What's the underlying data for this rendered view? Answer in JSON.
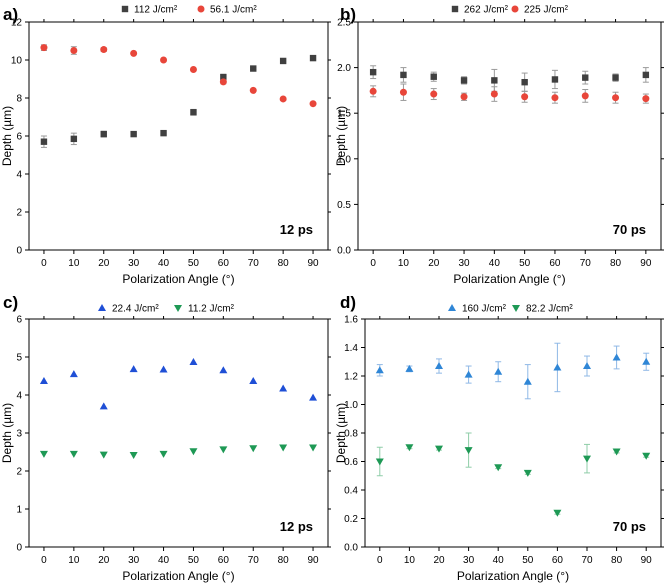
{
  "chart_data": [
    {
      "type": "scatter",
      "panel_label": "a)",
      "annotation": "12 ps",
      "xlabel": "Polarization Angle (°)",
      "ylabel": "Depth (µm)",
      "xlim": [
        -5,
        95
      ],
      "ylim": [
        0,
        12
      ],
      "xticks": [
        0,
        10,
        20,
        30,
        40,
        50,
        60,
        70,
        80,
        90
      ],
      "yticks": [
        0,
        2,
        4,
        6,
        8,
        10,
        12
      ],
      "yticklabels": [
        "0",
        "2",
        "4",
        "6",
        "8",
        "10",
        "12"
      ],
      "legend_position": "top",
      "series": [
        {
          "name": "112 J/cm²",
          "marker": "square",
          "color": "#404040",
          "x": [
            0,
            10,
            20,
            30,
            40,
            50,
            60,
            70,
            80,
            90
          ],
          "y": [
            5.7,
            5.85,
            6.1,
            6.1,
            6.15,
            7.25,
            9.1,
            9.55,
            9.95,
            10.1
          ],
          "err": [
            0.3,
            0.3,
            0.15,
            0.05,
            0.05,
            0.15,
            0.15,
            0.05,
            0.05,
            0.05
          ]
        },
        {
          "name": "56.1 J/cm²",
          "marker": "circle",
          "color": "#e8463a",
          "x": [
            0,
            10,
            20,
            30,
            40,
            50,
            60,
            70,
            80,
            90
          ],
          "y": [
            10.65,
            10.5,
            10.55,
            10.35,
            10.0,
            9.5,
            8.85,
            8.4,
            7.95,
            7.7
          ],
          "err": [
            0.15,
            0.2,
            0.1,
            0.05,
            0.05,
            0.05,
            0.1,
            0.05,
            0.05,
            0.05
          ]
        }
      ]
    },
    {
      "type": "scatter",
      "panel_label": "b)",
      "annotation": "70 ps",
      "xlabel": "Polarization Angle (°)",
      "ylabel": "Depth (µm)",
      "xlim": [
        -5,
        95
      ],
      "ylim": [
        0,
        2.5
      ],
      "xticks": [
        0,
        10,
        20,
        30,
        40,
        50,
        60,
        70,
        80,
        90
      ],
      "yticks": [
        0,
        0.5,
        1.0,
        1.5,
        2.0,
        2.5
      ],
      "yticklabels": [
        "0.0",
        "0.5",
        "1.0",
        "1.5",
        "2.0",
        "2.5"
      ],
      "legend_position": "top",
      "series": [
        {
          "name": "262 J/cm²",
          "marker": "square",
          "color": "#404040",
          "x": [
            0,
            10,
            20,
            30,
            40,
            50,
            60,
            70,
            80,
            90
          ],
          "y": [
            1.95,
            1.92,
            1.9,
            1.86,
            1.86,
            1.84,
            1.87,
            1.89,
            1.89,
            1.92
          ],
          "err": [
            0.07,
            0.08,
            0.05,
            0.04,
            0.12,
            0.1,
            0.1,
            0.07,
            0.04,
            0.08
          ]
        },
        {
          "name": "225 J/cm²",
          "marker": "circle",
          "color": "#e8463a",
          "x": [
            0,
            10,
            20,
            30,
            40,
            50,
            60,
            70,
            80,
            90
          ],
          "y": [
            1.74,
            1.73,
            1.71,
            1.68,
            1.71,
            1.68,
            1.67,
            1.69,
            1.67,
            1.66
          ],
          "err": [
            0.06,
            0.09,
            0.06,
            0.04,
            0.08,
            0.06,
            0.06,
            0.07,
            0.06,
            0.05
          ]
        }
      ]
    },
    {
      "type": "scatter",
      "panel_label": "c)",
      "annotation": "12 ps",
      "xlabel": "Polarization Angle (°)",
      "ylabel": "Depth (µm)",
      "xlim": [
        -5,
        95
      ],
      "ylim": [
        0,
        6
      ],
      "xticks": [
        0,
        10,
        20,
        30,
        40,
        50,
        60,
        70,
        80,
        90
      ],
      "yticks": [
        0,
        1,
        2,
        3,
        4,
        5,
        6
      ],
      "yticklabels": [
        "0",
        "1",
        "2",
        "3",
        "4",
        "5",
        "6"
      ],
      "legend_position": "top",
      "series": [
        {
          "name": "22.4 J/cm²",
          "marker": "triangle-up",
          "color": "#1f4fd6",
          "x": [
            0,
            10,
            20,
            30,
            40,
            50,
            60,
            70,
            80,
            90
          ],
          "y": [
            4.37,
            4.55,
            3.7,
            4.68,
            4.67,
            4.87,
            4.65,
            4.37,
            4.17,
            3.93
          ],
          "err": [
            0,
            0,
            0,
            0,
            0,
            0,
            0,
            0,
            0,
            0
          ]
        },
        {
          "name": "11.2 J/cm²",
          "marker": "triangle-down",
          "color": "#1e9955",
          "x": [
            0,
            10,
            20,
            30,
            40,
            50,
            60,
            70,
            80,
            90
          ],
          "y": [
            2.45,
            2.45,
            2.43,
            2.42,
            2.45,
            2.52,
            2.57,
            2.6,
            2.62,
            2.62
          ],
          "err": [
            0,
            0,
            0,
            0,
            0,
            0,
            0,
            0,
            0,
            0
          ]
        }
      ]
    },
    {
      "type": "scatter",
      "panel_label": "d)",
      "annotation": "70 ps",
      "xlabel": "Polarization Angle (°)",
      "ylabel": "Depth (µm)",
      "xlim": [
        -5,
        95
      ],
      "ylim": [
        0,
        1.6
      ],
      "xticks": [
        0,
        10,
        20,
        30,
        40,
        50,
        60,
        70,
        80,
        90
      ],
      "yticks": [
        0,
        0.2,
        0.4,
        0.6,
        0.8,
        1.0,
        1.2,
        1.4,
        1.6
      ],
      "yticklabels": [
        "0.0",
        "0.2",
        "0.4",
        "0.6",
        "0.8",
        "1.0",
        "1.2",
        "1.4",
        "1.6"
      ],
      "legend_position": "top",
      "series": [
        {
          "name": "160 J/cm²",
          "marker": "triangle-up",
          "color": "#2f86d6",
          "x": [
            0,
            10,
            20,
            30,
            40,
            50,
            60,
            70,
            80,
            90
          ],
          "y": [
            1.24,
            1.25,
            1.27,
            1.21,
            1.23,
            1.16,
            1.26,
            1.27,
            1.33,
            1.3
          ],
          "err": [
            0.04,
            0.02,
            0.05,
            0.06,
            0.07,
            0.12,
            0.17,
            0.07,
            0.08,
            0.06
          ]
        },
        {
          "name": "82.2 J/cm²",
          "marker": "triangle-down",
          "color": "#1e9955",
          "x": [
            0,
            10,
            20,
            30,
            40,
            50,
            60,
            70,
            80,
            90
          ],
          "y": [
            0.6,
            0.7,
            0.69,
            0.68,
            0.56,
            0.52,
            0.24,
            0.62,
            0.67,
            0.64
          ],
          "err": [
            0.1,
            0.01,
            0.01,
            0.12,
            0.01,
            0.01,
            0.01,
            0.1,
            0.01,
            0.01
          ]
        }
      ]
    }
  ]
}
